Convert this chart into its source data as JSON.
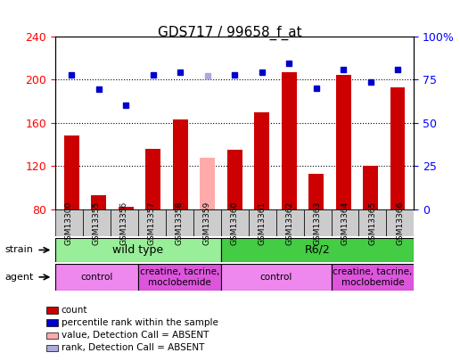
{
  "title": "GDS717 / 99658_f_at",
  "samples": [
    "GSM13300",
    "GSM13355",
    "GSM13356",
    "GSM13357",
    "GSM13358",
    "GSM13359",
    "GSM13360",
    "GSM13361",
    "GSM13362",
    "GSM13363",
    "GSM13364",
    "GSM13365",
    "GSM13366"
  ],
  "bar_values": [
    148,
    93,
    82,
    136,
    163,
    128,
    135,
    170,
    207,
    113,
    204,
    120,
    193
  ],
  "bar_colors": [
    "#cc0000",
    "#cc0000",
    "#cc0000",
    "#cc0000",
    "#cc0000",
    "#ffaaaa",
    "#cc0000",
    "#cc0000",
    "#cc0000",
    "#cc0000",
    "#cc0000",
    "#cc0000",
    "#cc0000"
  ],
  "dot_values": [
    204,
    191,
    176,
    204,
    207,
    203,
    204,
    207,
    215,
    192,
    209,
    198,
    209
  ],
  "dot_colors": [
    "#0000cc",
    "#0000cc",
    "#0000cc",
    "#0000cc",
    "#0000cc",
    "#aaaadd",
    "#0000cc",
    "#0000cc",
    "#0000cc",
    "#0000cc",
    "#0000cc",
    "#0000cc",
    "#0000cc"
  ],
  "ylim_left": [
    80,
    240
  ],
  "ylim_right": [
    0,
    100
  ],
  "yticks_left": [
    80,
    120,
    160,
    200,
    240
  ],
  "yticks_right": [
    0,
    25,
    50,
    75,
    100
  ],
  "ytick_labels_right": [
    "0",
    "25",
    "50",
    "75",
    "100%"
  ],
  "strain_groups": [
    {
      "label": "wild type",
      "start": 0,
      "end": 5,
      "color": "#99ee99"
    },
    {
      "label": "R6/2",
      "start": 6,
      "end": 12,
      "color": "#44cc44"
    }
  ],
  "agent_groups": [
    {
      "label": "control",
      "start": 0,
      "end": 2,
      "color": "#ee88ee"
    },
    {
      "label": "creatine, tacrine,\nmoclobemide",
      "start": 3,
      "end": 5,
      "color": "#dd55dd"
    },
    {
      "label": "control",
      "start": 6,
      "end": 9,
      "color": "#ee88ee"
    },
    {
      "label": "creatine, tacrine,\nmoclobemide",
      "start": 10,
      "end": 12,
      "color": "#dd55dd"
    }
  ],
  "legend_items": [
    {
      "label": "count",
      "color": "#cc0000"
    },
    {
      "label": "percentile rank within the sample",
      "color": "#0000cc"
    },
    {
      "label": "value, Detection Call = ABSENT",
      "color": "#ffaaaa"
    },
    {
      "label": "rank, Detection Call = ABSENT",
      "color": "#aaaadd"
    }
  ]
}
